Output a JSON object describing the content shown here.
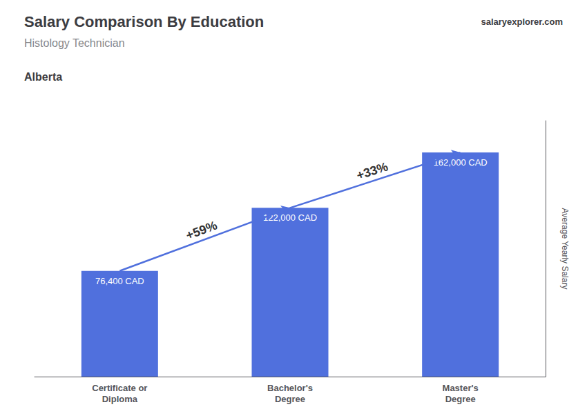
{
  "chart_data": {
    "type": "bar",
    "title": "Salary Comparison By Education",
    "subtitle": "Histology Technician",
    "ylabel": "Average Yearly Salary",
    "categories": [
      "Certificate or\nDiploma",
      "Bachelor's\nDegree",
      "Master's\nDegree"
    ],
    "values": [
      76400,
      122000,
      162000
    ],
    "value_labels": [
      "76,400 CAD",
      "122,000 CAD",
      "162,000 CAD"
    ],
    "data_labels": true,
    "ylim": [
      0,
      185000
    ],
    "tick_labels": "x",
    "grid": false,
    "annotations": [
      {
        "text": "Alberta"
      },
      {
        "text": "salaryexplorer.com"
      },
      {
        "text": "+59%",
        "from": "Certificate or\nDiploma",
        "to": "Bachelor's\nDegree"
      },
      {
        "text": "+33%",
        "from": "Bachelor's\nDegree",
        "to": "Master's\nDegree"
      }
    ]
  }
}
